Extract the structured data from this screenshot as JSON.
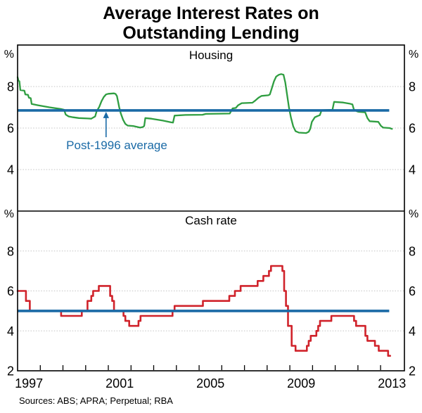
{
  "title": {
    "line1": "Average Interest Rates on",
    "line2": "Outstanding Lending"
  },
  "sources": "Sources: ABS; APRA; Perpetual; RBA",
  "colors": {
    "housing_line": "#2f9e41",
    "cash_rate_line": "#d0232b",
    "average_line": "#1a6aa6",
    "gridline": "#c4c4c4",
    "axis": "#000000"
  },
  "chart_data": {
    "type": "line",
    "x_axis": {
      "domain": [
        1997,
        2014.05
      ],
      "tick_years": [
        1998,
        1999,
        2000,
        2001,
        2002,
        2003,
        2004,
        2005,
        2006,
        2007,
        2008,
        2009,
        2010,
        2011,
        2012,
        2013
      ],
      "label_years": [
        "1997",
        "2001",
        "2005",
        "2009",
        "2013"
      ]
    },
    "y_axis": {
      "unit": "%",
      "ylim": [
        2,
        10
      ],
      "gridline_values": [
        4,
        6,
        8
      ]
    },
    "annotation": {
      "text": "Post-1996 average",
      "arrow_points_to": {
        "year": 2000.9,
        "value": 6.85
      }
    },
    "panels": [
      {
        "label": "Housing",
        "tick_label_values": [
          "8",
          "6",
          "4"
        ],
        "tick_values": [
          8,
          6,
          4
        ],
        "step": false,
        "average_line": {
          "value": 6.85,
          "end_year": 2013.38
        },
        "points": [
          [
            1997.0,
            8.45
          ],
          [
            1997.04,
            8.28
          ],
          [
            1997.08,
            8.25
          ],
          [
            1997.12,
            7.83
          ],
          [
            1997.3,
            7.8
          ],
          [
            1997.34,
            7.62
          ],
          [
            1997.46,
            7.6
          ],
          [
            1997.5,
            7.46
          ],
          [
            1997.58,
            7.44
          ],
          [
            1997.62,
            7.16
          ],
          [
            1997.9,
            7.1
          ],
          [
            1998.4,
            7.0
          ],
          [
            1998.9,
            6.92
          ],
          [
            1999.05,
            6.88
          ],
          [
            1999.12,
            6.65
          ],
          [
            1999.25,
            6.56
          ],
          [
            1999.45,
            6.52
          ],
          [
            1999.7,
            6.48
          ],
          [
            2000.1,
            6.46
          ],
          [
            2000.25,
            6.45
          ],
          [
            2000.35,
            6.52
          ],
          [
            2000.42,
            6.56
          ],
          [
            2000.48,
            6.8
          ],
          [
            2000.6,
            7.02
          ],
          [
            2000.7,
            7.3
          ],
          [
            2000.8,
            7.5
          ],
          [
            2000.9,
            7.62
          ],
          [
            2001.0,
            7.65
          ],
          [
            2001.25,
            7.67
          ],
          [
            2001.32,
            7.64
          ],
          [
            2001.38,
            7.54
          ],
          [
            2001.48,
            7.0
          ],
          [
            2001.55,
            6.7
          ],
          [
            2001.65,
            6.4
          ],
          [
            2001.75,
            6.2
          ],
          [
            2001.85,
            6.12
          ],
          [
            2002.1,
            6.1
          ],
          [
            2002.25,
            6.06
          ],
          [
            2002.4,
            6.02
          ],
          [
            2002.52,
            6.05
          ],
          [
            2002.58,
            6.1
          ],
          [
            2002.63,
            6.48
          ],
          [
            2002.9,
            6.45
          ],
          [
            2003.4,
            6.36
          ],
          [
            2003.75,
            6.28
          ],
          [
            2003.85,
            6.26
          ],
          [
            2003.92,
            6.6
          ],
          [
            2004.4,
            6.63
          ],
          [
            2005.15,
            6.64
          ],
          [
            2005.3,
            6.68
          ],
          [
            2006.35,
            6.7
          ],
          [
            2006.48,
            6.95
          ],
          [
            2006.62,
            6.97
          ],
          [
            2006.72,
            7.1
          ],
          [
            2006.88,
            7.2
          ],
          [
            2007.35,
            7.22
          ],
          [
            2007.48,
            7.33
          ],
          [
            2007.62,
            7.46
          ],
          [
            2007.75,
            7.55
          ],
          [
            2008.05,
            7.58
          ],
          [
            2008.12,
            7.62
          ],
          [
            2008.2,
            7.9
          ],
          [
            2008.3,
            8.25
          ],
          [
            2008.4,
            8.48
          ],
          [
            2008.52,
            8.57
          ],
          [
            2008.62,
            8.6
          ],
          [
            2008.72,
            8.57
          ],
          [
            2008.8,
            8.2
          ],
          [
            2008.88,
            7.6
          ],
          [
            2008.96,
            7.0
          ],
          [
            2009.05,
            6.5
          ],
          [
            2009.15,
            6.08
          ],
          [
            2009.25,
            5.85
          ],
          [
            2009.4,
            5.78
          ],
          [
            2009.72,
            5.76
          ],
          [
            2009.83,
            5.82
          ],
          [
            2009.9,
            5.96
          ],
          [
            2009.97,
            6.3
          ],
          [
            2010.1,
            6.52
          ],
          [
            2010.22,
            6.58
          ],
          [
            2010.32,
            6.62
          ],
          [
            2010.4,
            6.86
          ],
          [
            2010.65,
            6.87
          ],
          [
            2010.88,
            6.88
          ],
          [
            2010.95,
            7.26
          ],
          [
            2011.35,
            7.23
          ],
          [
            2011.62,
            7.18
          ],
          [
            2011.76,
            7.14
          ],
          [
            2011.82,
            6.9
          ],
          [
            2011.9,
            6.84
          ],
          [
            2011.97,
            6.8
          ],
          [
            2012.05,
            6.78
          ],
          [
            2012.32,
            6.76
          ],
          [
            2012.42,
            6.48
          ],
          [
            2012.52,
            6.33
          ],
          [
            2012.9,
            6.3
          ],
          [
            2013.02,
            6.1
          ],
          [
            2013.12,
            6.02
          ],
          [
            2013.4,
            6.0
          ],
          [
            2013.5,
            5.96
          ]
        ]
      },
      {
        "label": "Cash rate",
        "tick_label_values": [
          "8",
          "6",
          "4",
          "2"
        ],
        "tick_values": [
          8,
          6,
          4,
          2
        ],
        "step": true,
        "end_year": 2013.42,
        "average_line": {
          "value": 5.0,
          "end_year": 2013.38
        },
        "points": [
          [
            1997.0,
            6.0
          ],
          [
            1997.37,
            5.5
          ],
          [
            1997.54,
            5.0
          ],
          [
            1998.92,
            4.75
          ],
          [
            1999.83,
            5.0
          ],
          [
            2000.08,
            5.5
          ],
          [
            2000.25,
            5.75
          ],
          [
            2000.33,
            6.0
          ],
          [
            2000.58,
            6.25
          ],
          [
            2001.08,
            5.75
          ],
          [
            2001.17,
            5.5
          ],
          [
            2001.25,
            5.0
          ],
          [
            2001.67,
            4.75
          ],
          [
            2001.75,
            4.5
          ],
          [
            2001.92,
            4.25
          ],
          [
            2002.33,
            4.5
          ],
          [
            2002.42,
            4.75
          ],
          [
            2003.83,
            5.0
          ],
          [
            2003.92,
            5.25
          ],
          [
            2005.17,
            5.5
          ],
          [
            2006.33,
            5.75
          ],
          [
            2006.58,
            6.0
          ],
          [
            2006.83,
            6.25
          ],
          [
            2007.58,
            6.5
          ],
          [
            2007.83,
            6.75
          ],
          [
            2008.08,
            7.0
          ],
          [
            2008.17,
            7.25
          ],
          [
            2008.67,
            7.0
          ],
          [
            2008.75,
            6.0
          ],
          [
            2008.83,
            5.25
          ],
          [
            2008.92,
            4.25
          ],
          [
            2009.08,
            3.25
          ],
          [
            2009.25,
            3.0
          ],
          [
            2009.75,
            3.25
          ],
          [
            2009.83,
            3.5
          ],
          [
            2009.92,
            3.75
          ],
          [
            2010.17,
            4.0
          ],
          [
            2010.25,
            4.25
          ],
          [
            2010.33,
            4.5
          ],
          [
            2010.83,
            4.75
          ],
          [
            2011.83,
            4.5
          ],
          [
            2011.92,
            4.25
          ],
          [
            2012.33,
            3.75
          ],
          [
            2012.42,
            3.5
          ],
          [
            2012.75,
            3.25
          ],
          [
            2012.92,
            3.0
          ],
          [
            2013.33,
            2.75
          ]
        ]
      }
    ]
  }
}
